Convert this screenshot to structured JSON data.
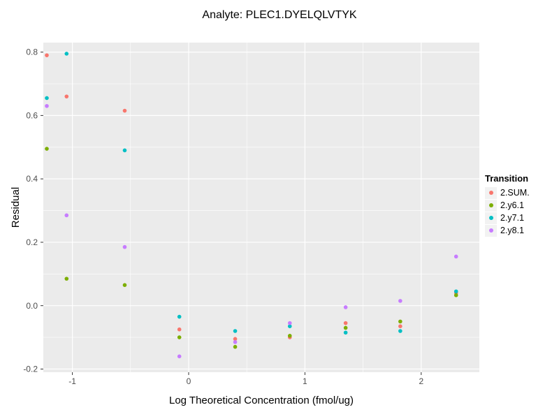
{
  "chart_data": {
    "type": "scatter",
    "title": "Analyte: PLEC1.DYELQLVTYK",
    "xlabel": "Log Theoretical Concentration (fmol/ug)",
    "ylabel": "Residual",
    "xlim": [
      -1.25,
      2.5
    ],
    "ylim": [
      -0.21,
      0.83
    ],
    "x_ticks": [
      -1,
      0,
      1,
      2
    ],
    "x_minor_ticks": [
      -0.5,
      0.5,
      1.5
    ],
    "y_ticks": [
      -0.2,
      0.0,
      0.2,
      0.4,
      0.6,
      0.8
    ],
    "y_minor_ticks": [
      -0.1,
      0.1,
      0.3,
      0.5,
      0.7
    ],
    "grid": true,
    "panel_color": "#EBEBEB",
    "gridline_color": "#FFFFFF",
    "tick_label_color": "#4D4D4D",
    "legend": {
      "title": "Transition",
      "position": "right"
    },
    "series": [
      {
        "name": "2.SUM.",
        "color": "#F8766D",
        "points": [
          [
            -1.22,
            0.79
          ],
          [
            -1.05,
            0.66
          ],
          [
            -0.55,
            0.615
          ],
          [
            -0.08,
            -0.075
          ],
          [
            0.4,
            -0.105
          ],
          [
            0.87,
            -0.1
          ],
          [
            1.35,
            -0.055
          ],
          [
            1.82,
            -0.065
          ],
          [
            2.3,
            0.04
          ]
        ]
      },
      {
        "name": "2.y6.1",
        "color": "#7CAE00",
        "points": [
          [
            -1.22,
            0.495
          ],
          [
            -1.05,
            0.085
          ],
          [
            -0.55,
            0.065
          ],
          [
            -0.08,
            -0.1
          ],
          [
            0.4,
            -0.13
          ],
          [
            0.87,
            -0.095
          ],
          [
            1.35,
            -0.07
          ],
          [
            1.82,
            -0.05
          ],
          [
            2.3,
            0.033
          ]
        ]
      },
      {
        "name": "2.y7.1",
        "color": "#00BFC4",
        "points": [
          [
            -1.22,
            0.655
          ],
          [
            -1.05,
            0.795
          ],
          [
            -0.55,
            0.49
          ],
          [
            -0.08,
            -0.035
          ],
          [
            0.4,
            -0.08
          ],
          [
            0.87,
            -0.065
          ],
          [
            1.35,
            -0.085
          ],
          [
            1.82,
            -0.08
          ],
          [
            2.3,
            0.045
          ]
        ]
      },
      {
        "name": "2.y8.1",
        "color": "#C77CFF",
        "points": [
          [
            -1.22,
            0.63
          ],
          [
            -1.05,
            0.285
          ],
          [
            -0.55,
            0.185
          ],
          [
            -0.08,
            -0.16
          ],
          [
            0.4,
            -0.115
          ],
          [
            0.87,
            -0.055
          ],
          [
            1.35,
            -0.005
          ],
          [
            1.82,
            0.015
          ],
          [
            2.3,
            0.155
          ]
        ]
      }
    ]
  }
}
